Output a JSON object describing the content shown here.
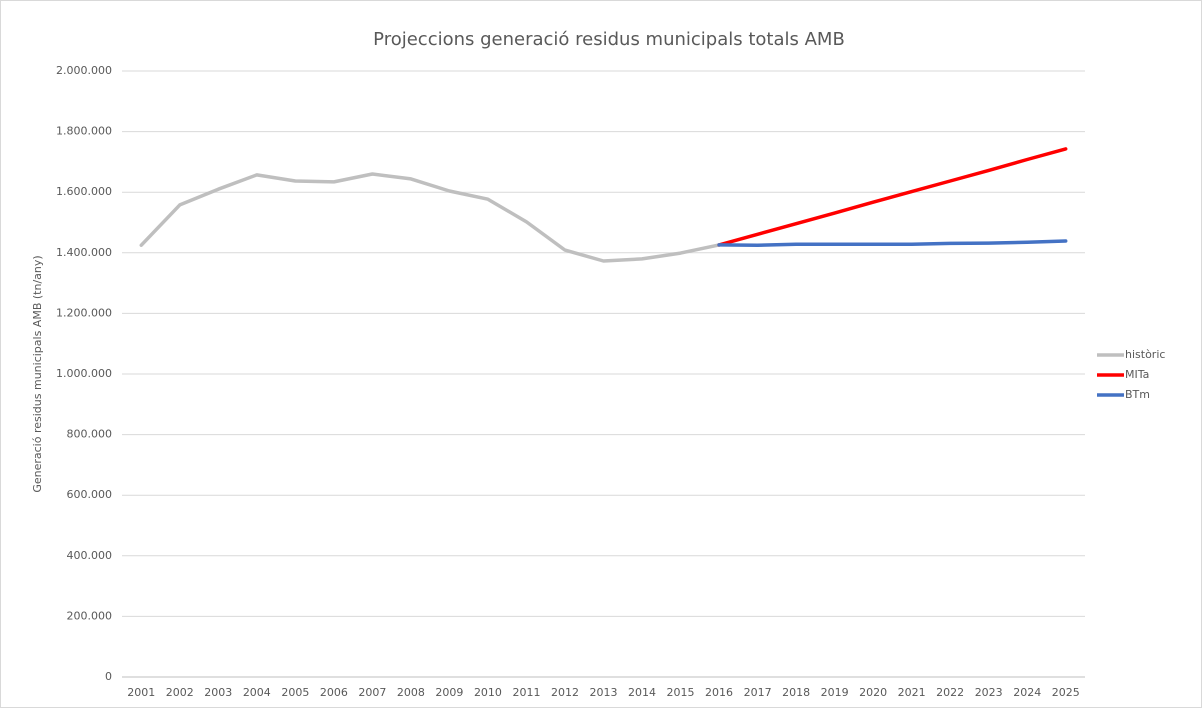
{
  "chart_data": {
    "type": "line",
    "title": "Projeccions generació residus municipals totals AMB",
    "y_label": "Generació residus municipals AMB (tn/any)",
    "categories": [
      "2001",
      "2002",
      "2003",
      "2004",
      "2005",
      "2006",
      "2007",
      "2008",
      "2009",
      "2010",
      "2011",
      "2012",
      "2013",
      "2014",
      "2015",
      "2016",
      "2017",
      "2018",
      "2019",
      "2020",
      "2021",
      "2022",
      "2023",
      "2024",
      "2025"
    ],
    "series": [
      {
        "name": "històric",
        "color": "#bfbfbf",
        "values": [
          1425000,
          1558000,
          1610000,
          1657000,
          1637000,
          1634000,
          1660000,
          1644000,
          1604000,
          1577000,
          1502000,
          1409000,
          1373000,
          1380000,
          1399000,
          1426000,
          null,
          null,
          null,
          null,
          null,
          null,
          null,
          null,
          null
        ]
      },
      {
        "name": "MITa",
        "color": "#ff0000",
        "values": [
          null,
          null,
          null,
          null,
          null,
          null,
          null,
          null,
          null,
          null,
          null,
          null,
          null,
          null,
          null,
          1426000,
          1461000,
          1496000,
          1531000,
          1567000,
          1602000,
          1637000,
          1672000,
          1708000,
          1743000
        ]
      },
      {
        "name": "BTm",
        "color": "#4472c4",
        "values": [
          null,
          null,
          null,
          null,
          null,
          null,
          null,
          null,
          null,
          null,
          null,
          null,
          null,
          null,
          null,
          1426000,
          1425000,
          1428000,
          1428000,
          1428000,
          1428000,
          1431000,
          1432000,
          1435000,
          1439000
        ]
      }
    ],
    "ylim": [
      0,
      2000000
    ],
    "yticks": [
      0,
      {
        "value": 200000,
        "label": "200.000"
      },
      {
        "value": 400000,
        "label": "400.000"
      },
      {
        "value": 600000,
        "label": "600.000"
      },
      {
        "value": 800000,
        "label": "800.000"
      },
      {
        "value": 1000000,
        "label": "1.000.000"
      },
      {
        "value": 1200000,
        "label": "1.200.000"
      },
      {
        "value": 1400000,
        "label": "1.400.000"
      },
      {
        "value": 1600000,
        "label": "1.600.000"
      },
      {
        "value": 1800000,
        "label": "1.800.000"
      },
      {
        "value": 2000000,
        "label": "2.000.000"
      }
    ],
    "grid": true,
    "legend": "right"
  }
}
